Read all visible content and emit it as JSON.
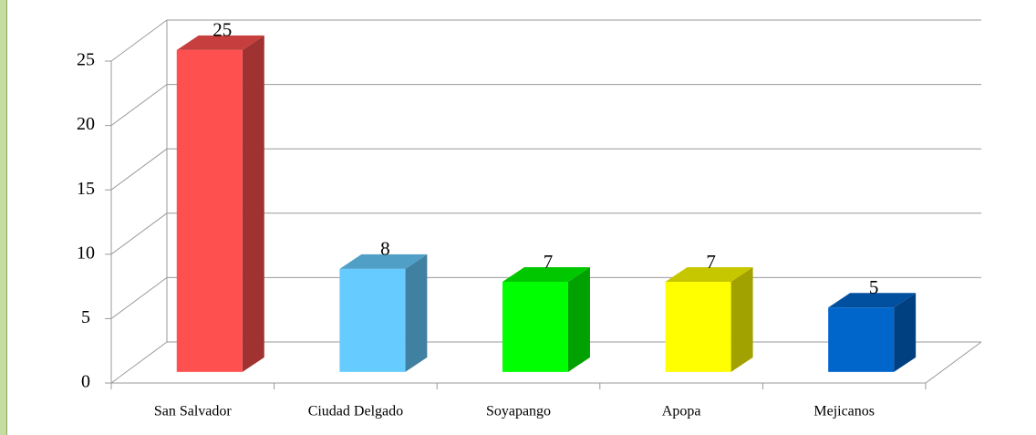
{
  "chart_data": {
    "type": "bar3d",
    "categories": [
      "San Salvador",
      "Ciudad Delgado",
      "Soyapango",
      "Apopa",
      "Mejicanos"
    ],
    "values": [
      25,
      8,
      7,
      7,
      5
    ],
    "colors": [
      "#ff5050",
      "#66ccff",
      "#00ff00",
      "#ffff00",
      "#0066cc"
    ],
    "ylim": [
      0,
      25
    ],
    "yticks": [
      0,
      5,
      10,
      15,
      20,
      25
    ],
    "grid": true
  }
}
